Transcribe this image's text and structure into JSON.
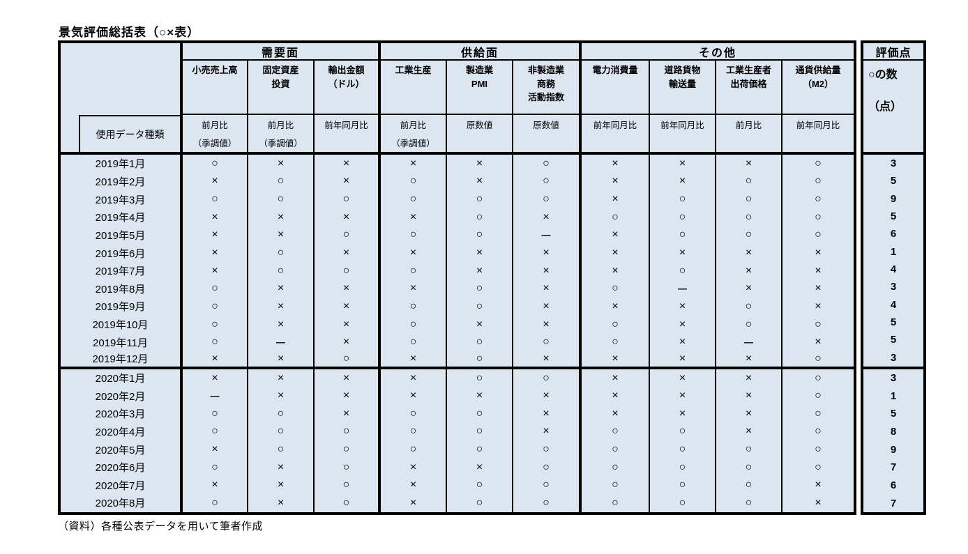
{
  "title": "景気評価総括表（○×表）",
  "source_note": "（資料）各種公表データを用いて筆者作成",
  "colors": {
    "cell_bg": "#dce6f0",
    "border": "#000000"
  },
  "table": {
    "corner_label": "使用データ種類",
    "groups": [
      {
        "label": "需要面"
      },
      {
        "label": "供給面"
      },
      {
        "label": "その他"
      }
    ],
    "columns": [
      {
        "group": "需要面",
        "name": "小売売上高",
        "datatype": "前月比\n（季調値）"
      },
      {
        "group": "需要面",
        "name": "固定資産\n投資",
        "datatype": "前月比\n（季調値）"
      },
      {
        "group": "需要面",
        "name": "輸出金額\n（ドル）",
        "datatype": "前年同月比"
      },
      {
        "group": "供給面",
        "name": "工業生産",
        "datatype": "前月比\n（季調値）"
      },
      {
        "group": "供給面",
        "name": "製造業\nPMI",
        "datatype": "原数値"
      },
      {
        "group": "供給面",
        "name": "非製造業\n商務\n活動指数",
        "datatype": "原数値"
      },
      {
        "group": "その他",
        "name": "電力消費量",
        "datatype": "前年同月比"
      },
      {
        "group": "その他",
        "name": "道路貨物\n輸送量",
        "datatype": "前年同月比"
      },
      {
        "group": "その他",
        "name": "工業生産者\n出荷価格",
        "datatype": "前月比"
      },
      {
        "group": "その他",
        "name": "通貨供給量\n（M2）",
        "datatype": "前年同月比"
      }
    ],
    "score_column": {
      "header": "評価点",
      "label_line1": "○の数",
      "label_line2": "（点）"
    },
    "rows": [
      {
        "month": "2019年1月",
        "values": [
          "○",
          "×",
          "×",
          "×",
          "×",
          "○",
          "×",
          "×",
          "×",
          "○"
        ],
        "score": 3
      },
      {
        "month": "2019年2月",
        "values": [
          "×",
          "○",
          "×",
          "○",
          "×",
          "○",
          "×",
          "×",
          "○",
          "○"
        ],
        "score": 5
      },
      {
        "month": "2019年3月",
        "values": [
          "○",
          "○",
          "○",
          "○",
          "○",
          "○",
          "×",
          "○",
          "○",
          "○"
        ],
        "score": 9
      },
      {
        "month": "2019年4月",
        "values": [
          "×",
          "×",
          "×",
          "×",
          "○",
          "×",
          "○",
          "○",
          "○",
          "○"
        ],
        "score": 5
      },
      {
        "month": "2019年5月",
        "values": [
          "×",
          "×",
          "○",
          "○",
          "○",
          "ー",
          "×",
          "○",
          "○",
          "○"
        ],
        "score": 6
      },
      {
        "month": "2019年6月",
        "values": [
          "×",
          "○",
          "×",
          "×",
          "×",
          "×",
          "×",
          "×",
          "×",
          "×"
        ],
        "score": 1
      },
      {
        "month": "2019年7月",
        "values": [
          "×",
          "○",
          "○",
          "○",
          "×",
          "×",
          "×",
          "○",
          "×",
          "×"
        ],
        "score": 4
      },
      {
        "month": "2019年8月",
        "values": [
          "○",
          "×",
          "×",
          "×",
          "○",
          "×",
          "○",
          "ー",
          "×",
          "×"
        ],
        "score": 3
      },
      {
        "month": "2019年9月",
        "values": [
          "○",
          "×",
          "×",
          "○",
          "○",
          "×",
          "×",
          "×",
          "○",
          "×"
        ],
        "score": 4
      },
      {
        "month": "2019年10月",
        "values": [
          "○",
          "×",
          "×",
          "○",
          "×",
          "×",
          "○",
          "×",
          "○",
          "○"
        ],
        "score": 5
      },
      {
        "month": "2019年11月",
        "values": [
          "○",
          "ー",
          "×",
          "○",
          "○",
          "○",
          "○",
          "×",
          "ー",
          "×"
        ],
        "score": 5
      },
      {
        "month": "2019年12月",
        "values": [
          "×",
          "×",
          "○",
          "×",
          "○",
          "×",
          "×",
          "×",
          "×",
          "○"
        ],
        "score": 3
      },
      {
        "month": "2020年1月",
        "values": [
          "×",
          "×",
          "×",
          "×",
          "○",
          "○",
          "×",
          "×",
          "×",
          "○"
        ],
        "score": 3
      },
      {
        "month": "2020年2月",
        "values": [
          "ー",
          "×",
          "×",
          "×",
          "×",
          "×",
          "×",
          "×",
          "×",
          "○"
        ],
        "score": 1
      },
      {
        "month": "2020年3月",
        "values": [
          "○",
          "○",
          "×",
          "○",
          "○",
          "×",
          "×",
          "×",
          "×",
          "○"
        ],
        "score": 5
      },
      {
        "month": "2020年4月",
        "values": [
          "○",
          "○",
          "○",
          "○",
          "○",
          "×",
          "○",
          "○",
          "×",
          "○"
        ],
        "score": 8
      },
      {
        "month": "2020年5月",
        "values": [
          "×",
          "○",
          "○",
          "○",
          "○",
          "○",
          "○",
          "○",
          "○",
          "○"
        ],
        "score": 9
      },
      {
        "month": "2020年6月",
        "values": [
          "○",
          "×",
          "○",
          "×",
          "×",
          "○",
          "○",
          "○",
          "○",
          "○"
        ],
        "score": 7
      },
      {
        "month": "2020年7月",
        "values": [
          "×",
          "×",
          "○",
          "×",
          "○",
          "○",
          "○",
          "○",
          "○",
          "×"
        ],
        "score": 6
      },
      {
        "month": "2020年8月",
        "values": [
          "○",
          "×",
          "○",
          "×",
          "○",
          "○",
          "○",
          "○",
          "○",
          "×"
        ],
        "score": 7
      }
    ]
  }
}
